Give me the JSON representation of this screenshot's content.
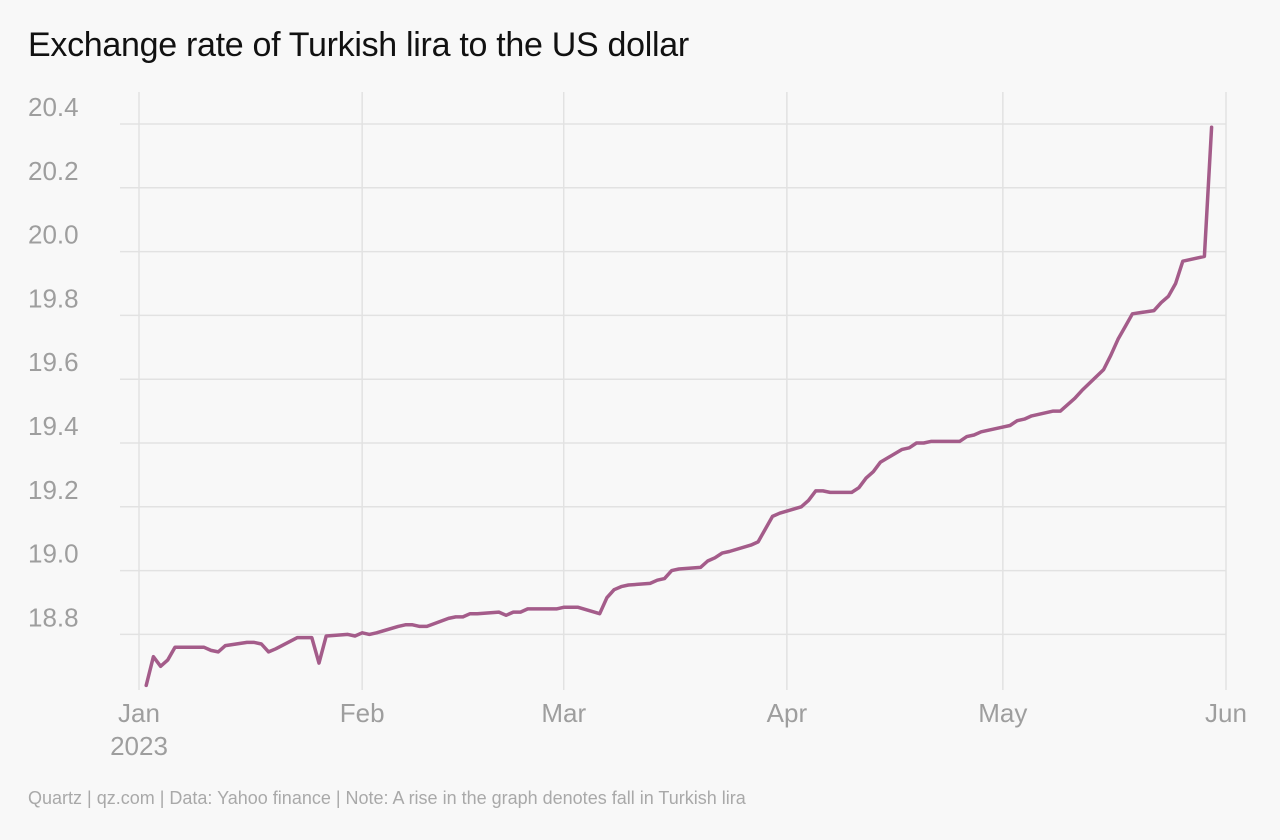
{
  "chart_data": {
    "type": "line",
    "title": "Exchange rate of Turkish lira to the US dollar",
    "xlabel": "",
    "ylabel": "",
    "ylim": [
      18.65,
      20.45
    ],
    "xlim": [
      "2023-01-01",
      "2023-06-01"
    ],
    "grid": true,
    "line_color": "#a45c8a",
    "y_ticks": [
      "20.4",
      "20.2",
      "20.0",
      "19.8",
      "19.6",
      "19.4",
      "19.2",
      "19.0",
      "18.8"
    ],
    "x_ticks": [
      {
        "label": "Jan",
        "sublabel": "2023",
        "date": "2023-01-01"
      },
      {
        "label": "Feb",
        "sublabel": "",
        "date": "2023-02-01"
      },
      {
        "label": "Mar",
        "sublabel": "",
        "date": "2023-03-01"
      },
      {
        "label": "Apr",
        "sublabel": "",
        "date": "2023-04-01"
      },
      {
        "label": "May",
        "sublabel": "",
        "date": "2023-05-01"
      },
      {
        "label": "Jun",
        "sublabel": "",
        "date": "2023-06-01"
      }
    ],
    "series": [
      {
        "x": [
          "2023-01-02",
          "2023-01-03",
          "2023-01-04",
          "2023-01-05",
          "2023-01-06",
          "2023-01-09",
          "2023-01-10",
          "2023-01-11",
          "2023-01-12",
          "2023-01-13",
          "2023-01-16",
          "2023-01-17",
          "2023-01-18",
          "2023-01-19",
          "2023-01-20",
          "2023-01-23",
          "2023-01-24",
          "2023-01-25",
          "2023-01-26",
          "2023-01-27",
          "2023-01-30",
          "2023-01-31",
          "2023-02-01",
          "2023-02-02",
          "2023-02-03",
          "2023-02-06",
          "2023-02-07",
          "2023-02-08",
          "2023-02-09",
          "2023-02-10",
          "2023-02-13",
          "2023-02-14",
          "2023-02-15",
          "2023-02-16",
          "2023-02-17",
          "2023-02-20",
          "2023-02-21",
          "2023-02-22",
          "2023-02-23",
          "2023-02-24",
          "2023-02-27",
          "2023-02-28",
          "2023-03-01",
          "2023-03-02",
          "2023-03-03",
          "2023-03-06",
          "2023-03-07",
          "2023-03-08",
          "2023-03-09",
          "2023-03-10",
          "2023-03-13",
          "2023-03-14",
          "2023-03-15",
          "2023-03-16",
          "2023-03-17",
          "2023-03-20",
          "2023-03-21",
          "2023-03-22",
          "2023-03-23",
          "2023-03-24",
          "2023-03-27",
          "2023-03-28",
          "2023-03-29",
          "2023-03-30",
          "2023-03-31",
          "2023-04-03",
          "2023-04-04",
          "2023-04-05",
          "2023-04-06",
          "2023-04-07",
          "2023-04-10",
          "2023-04-11",
          "2023-04-12",
          "2023-04-13",
          "2023-04-14",
          "2023-04-17",
          "2023-04-18",
          "2023-04-19",
          "2023-04-20",
          "2023-04-21",
          "2023-04-24",
          "2023-04-25",
          "2023-04-26",
          "2023-04-27",
          "2023-04-28",
          "2023-05-01",
          "2023-05-02",
          "2023-05-03",
          "2023-05-04",
          "2023-05-05",
          "2023-05-08",
          "2023-05-09",
          "2023-05-10",
          "2023-05-11",
          "2023-05-12",
          "2023-05-15",
          "2023-05-16",
          "2023-05-17",
          "2023-05-18",
          "2023-05-19",
          "2023-05-22",
          "2023-05-23",
          "2023-05-24",
          "2023-05-25",
          "2023-05-26",
          "2023-05-29",
          "2023-05-30"
        ],
        "y": [
          18.64,
          18.73,
          18.7,
          18.72,
          18.76,
          18.76,
          18.76,
          18.75,
          18.745,
          18.765,
          18.775,
          18.775,
          18.77,
          18.745,
          18.755,
          18.79,
          18.79,
          18.79,
          18.71,
          18.795,
          18.8,
          18.795,
          18.805,
          18.8,
          18.805,
          18.825,
          18.83,
          18.83,
          18.825,
          18.825,
          18.85,
          18.855,
          18.855,
          18.865,
          18.865,
          18.87,
          18.86,
          18.87,
          18.87,
          18.88,
          18.88,
          18.88,
          18.885,
          18.885,
          18.885,
          18.865,
          18.915,
          18.94,
          18.95,
          18.955,
          18.96,
          18.97,
          18.975,
          19.0,
          19.005,
          19.01,
          19.03,
          19.04,
          19.055,
          19.06,
          19.08,
          19.09,
          19.13,
          19.17,
          19.18,
          19.2,
          19.22,
          19.25,
          19.25,
          19.245,
          19.245,
          19.26,
          19.29,
          19.31,
          19.34,
          19.38,
          19.385,
          19.4,
          19.4,
          19.405,
          19.405,
          19.405,
          19.42,
          19.425,
          19.435,
          19.45,
          19.455,
          19.47,
          19.475,
          19.485,
          19.5,
          19.5,
          19.52,
          19.54,
          19.565,
          19.63,
          19.675,
          19.725,
          19.765,
          19.805,
          19.815,
          19.84,
          19.86,
          19.9,
          19.97,
          19.985,
          20.39
        ]
      }
    ]
  },
  "footer": {
    "source_text": "Quartz | qz.com | Data: Yahoo finance | Note: A rise in the graph denotes fall in Turkish lira"
  }
}
